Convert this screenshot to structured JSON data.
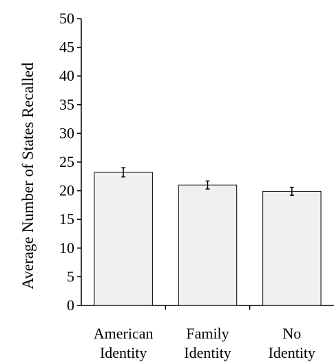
{
  "chart_data": {
    "type": "bar",
    "title": "",
    "xlabel": "",
    "ylabel": "Average Number of States Recalled",
    "ylim": [
      0,
      50
    ],
    "yticks": [
      0,
      5,
      10,
      15,
      20,
      25,
      30,
      35,
      40,
      45,
      50
    ],
    "grid": false,
    "categories": [
      [
        "American",
        "Identity"
      ],
      [
        "Family",
        "Identity"
      ],
      [
        "No",
        "Identity"
      ]
    ],
    "values": [
      23.2,
      21.0,
      19.9
    ],
    "error": [
      0.8,
      0.7,
      0.7
    ],
    "colors": {
      "bar_fill": "#f0f0f0",
      "bar_stroke": "#000000",
      "axis": "#000000"
    }
  }
}
